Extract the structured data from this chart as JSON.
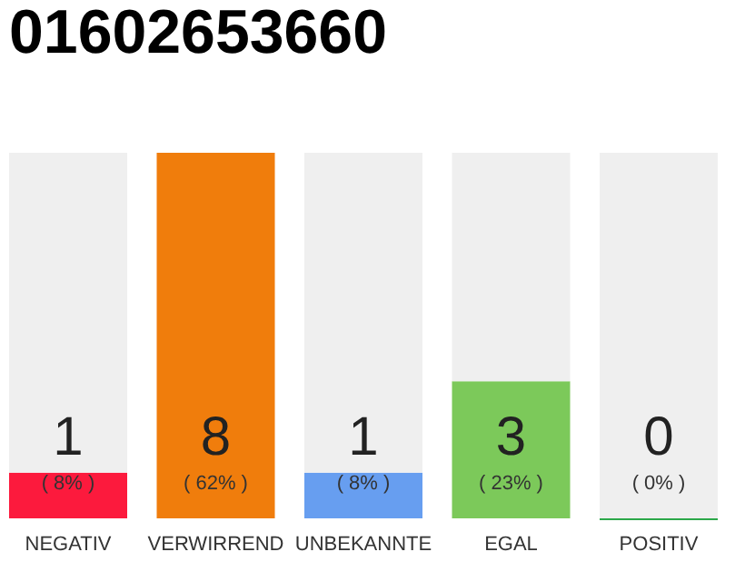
{
  "chart_data": {
    "type": "bar",
    "title": "01602653660",
    "categories": [
      "NEGATIV",
      "VERWIRREND",
      "UNBEKANNTE",
      "EGAL",
      "POSITIV"
    ],
    "stacked": true,
    "grid": false,
    "ylim": [
      0,
      8
    ],
    "tick_labels": "x",
    "series": [
      {
        "colors": [
          "#fc1a3d",
          "#f07d0c",
          "#679ef0",
          "#7cc95a",
          "#2ca84a"
        ],
        "values": [
          1,
          8,
          1,
          3,
          0
        ],
        "data_labels": true
      },
      {
        "color": "#efefef",
        "values": [
          7,
          0,
          7,
          5,
          8
        ]
      }
    ],
    "annotations": [
      "( 8% )",
      "( 62% )",
      "( 8% )",
      "( 23% )",
      "( 0% )"
    ]
  }
}
